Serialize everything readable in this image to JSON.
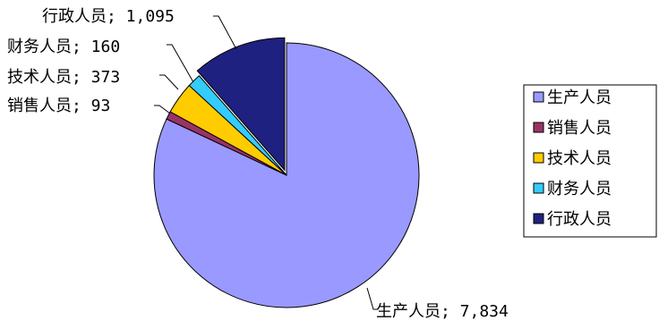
{
  "chart_data": {
    "type": "pie",
    "title": "",
    "categories": [
      "生产人员",
      "销售人员",
      "技术人员",
      "财务人员",
      "行政人员"
    ],
    "values": [
      7834,
      93,
      373,
      160,
      1095
    ],
    "data_labels": [
      "生产人员; 7,834",
      "销售人员; 93",
      "技术人员; 373",
      "财务人员; 160",
      "行政人员; 1,095"
    ],
    "colors": [
      "#9999ff",
      "#993366",
      "#ffcc00",
      "#33ccff",
      "#1f2180"
    ],
    "exploded_series": [
      "行政人员"
    ],
    "legend": {
      "position": "right",
      "items": [
        "生产人员",
        "销售人员",
        "技术人员",
        "财务人员",
        "行政人员"
      ]
    }
  }
}
